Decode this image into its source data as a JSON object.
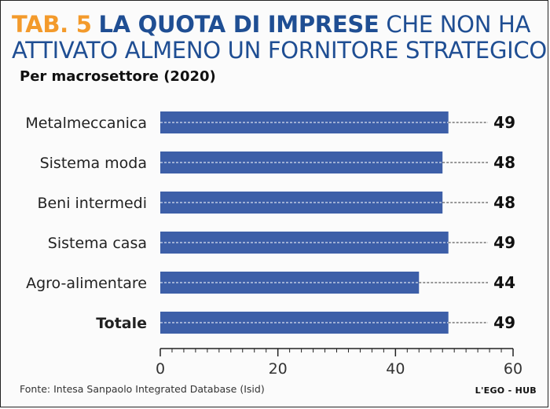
{
  "header": {
    "tab_label": "TAB. 5",
    "title_bold": "LA QUOTA DI IMPRESE",
    "title_light_1": "CHE NON HA",
    "title_light_2": "ATTIVATO ALMENO UN FORNITORE STRATEGICO",
    "subtitle": "Per macrosettore (2020)"
  },
  "footer": {
    "source": "Fonte: Intesa Sanpaolo Integrated Database (Isid)",
    "brand": "L'EGO - HUB"
  },
  "colors": {
    "bar": "#3d5fa8",
    "title": "#1f4e93",
    "tab": "#f39a2b"
  },
  "chart_data": {
    "type": "bar",
    "orientation": "horizontal",
    "categories": [
      "Metalmeccanica",
      "Sistema moda",
      "Beni intermedi",
      "Sistema casa",
      "Agro-alimentare",
      "Totale"
    ],
    "values": [
      49,
      48,
      48,
      49,
      44,
      49
    ],
    "bold_categories": [
      "Totale"
    ],
    "xlim": [
      0,
      60
    ],
    "xticks": [
      0,
      20,
      40,
      60
    ],
    "grid": false
  }
}
